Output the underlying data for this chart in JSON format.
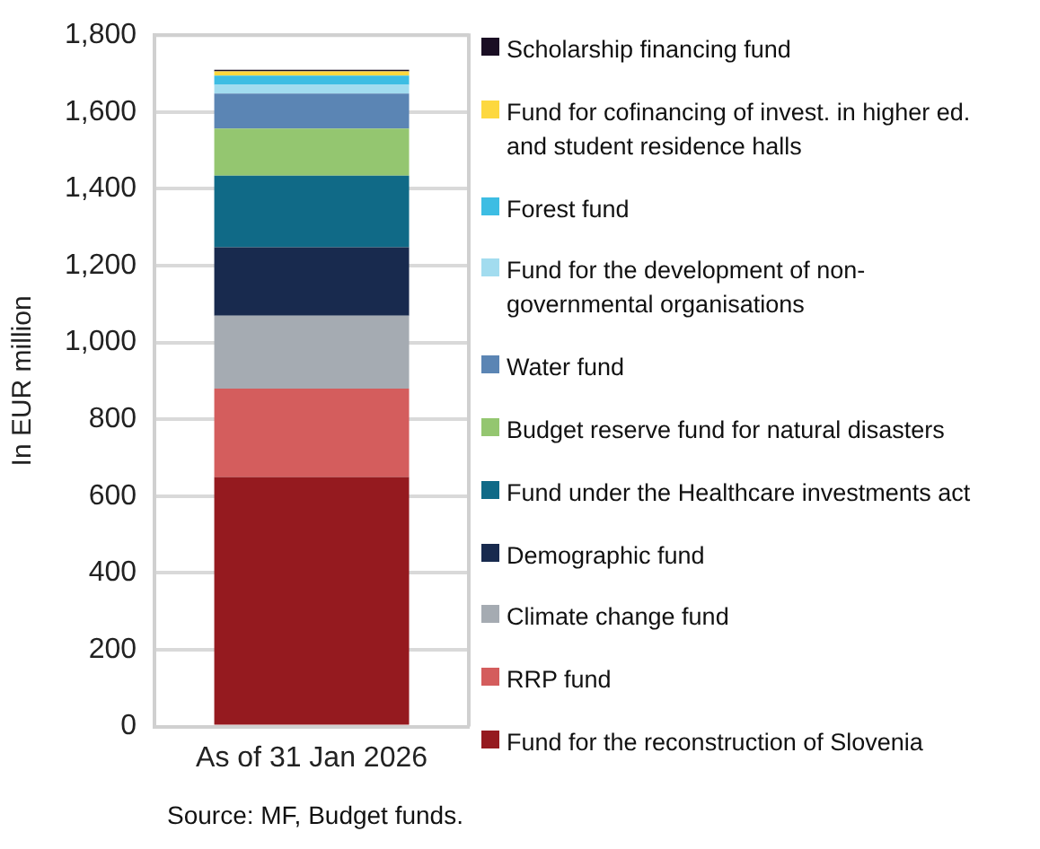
{
  "chart_data": {
    "type": "bar",
    "stacked": true,
    "categories": [
      "As of 31 Jan 2026"
    ],
    "ylabel": "In EUR million",
    "ylim": [
      0,
      1800
    ],
    "yticks": [
      0,
      200,
      400,
      600,
      800,
      {
        "value": 1000,
        "label": "1,000"
      },
      {
        "value": 1200,
        "label": "1,200"
      },
      {
        "value": 1400,
        "label": "1,400"
      },
      {
        "value": 1600,
        "label": "1,600"
      },
      {
        "value": 1800,
        "label": "1,800"
      }
    ],
    "grid": "y",
    "legend": "right",
    "annotations": [
      "Source: MF, Budget funds."
    ],
    "series": [
      {
        "name": "Fund for the reconstruction of Slovenia",
        "color": "#951a1f",
        "values": [
          650
        ]
      },
      {
        "name": "RRP fund",
        "color": "#d45d5d",
        "values": [
          230
        ]
      },
      {
        "name": "Climate change fund",
        "color": "#a5abb2",
        "values": [
          190
        ]
      },
      {
        "name": "Demographic fund",
        "color": "#182a4e",
        "values": [
          178
        ]
      },
      {
        "name": "Fund under the Healthcare investments act",
        "color": "#106a87",
        "values": [
          186
        ]
      },
      {
        "name": "Budget reserve fund for natural disasters",
        "color": "#94c670",
        "values": [
          123
        ]
      },
      {
        "name": "Water fund",
        "color": "#5b85b4",
        "values": [
          91
        ]
      },
      {
        "name": "Fund for the development of non-governmental organisations",
        "color": "#a2dcef",
        "values": [
          23
        ]
      },
      {
        "name": "Forest fund",
        "color": "#3dbde3",
        "values": [
          24
        ]
      },
      {
        "name": "Fund for cofinancing of invest. in higher ed. and student residence halls",
        "color": "#fdd83f",
        "values": [
          11
        ]
      },
      {
        "name": "Scholarship financing fund",
        "color": "#1a0e24",
        "values": [
          4
        ]
      }
    ]
  }
}
